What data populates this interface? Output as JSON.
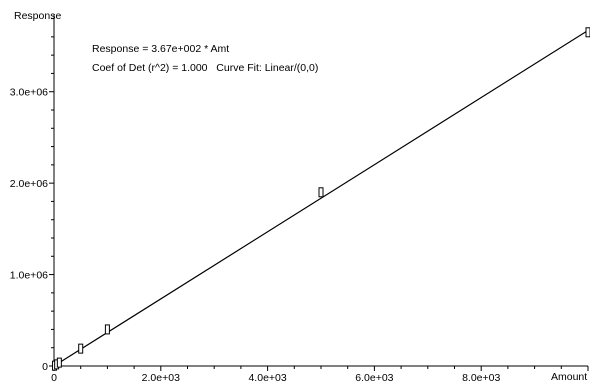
{
  "chart_data": {
    "type": "scatter",
    "ylabel": "Response",
    "xlabel": "Amount",
    "annotations": [
      "Response = 3.67e+002 * Amt",
      "Coef of Det (r^2) = 1.000   Curve Fit: Linear/(0,0)"
    ],
    "xlim": [
      0,
      10000
    ],
    "ylim": [
      0,
      3850000
    ],
    "x_ticks": [
      {
        "value": 0,
        "label": "0"
      },
      {
        "value": 2000,
        "label": "2.0e+03"
      },
      {
        "value": 4000,
        "label": "4.0e+03"
      },
      {
        "value": 6000,
        "label": "6.0e+03"
      },
      {
        "value": 8000,
        "label": "8.0e+03"
      }
    ],
    "y_ticks": [
      {
        "value": 0,
        "label": "0"
      },
      {
        "value": 1000000,
        "label": "1.0e+06"
      },
      {
        "value": 2000000,
        "label": "2.0e+06"
      },
      {
        "value": 3000000,
        "label": "3.0e+06"
      }
    ],
    "fit": {
      "slope": 367,
      "intercept": 0
    },
    "points": [
      {
        "x": 10,
        "y": 3700
      },
      {
        "x": 50,
        "y": 18000
      },
      {
        "x": 100,
        "y": 37000
      },
      {
        "x": 500,
        "y": 190000
      },
      {
        "x": 1000,
        "y": 400000
      },
      {
        "x": 5000,
        "y": 1900000
      },
      {
        "x": 10000,
        "y": 3650000
      }
    ],
    "grid": false,
    "legend": "none"
  }
}
